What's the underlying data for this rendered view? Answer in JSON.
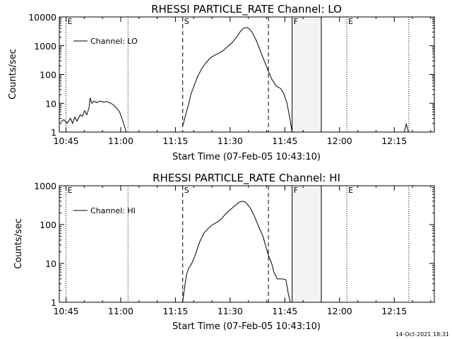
{
  "chart_data": [
    {
      "type": "line",
      "title": "RHESSI PARTICLE_RATE Channel: LO",
      "xlabel": "Start Time (07-Feb-05 10:43:10)",
      "ylabel": "Counts/sec",
      "yscale": "log",
      "ylim": [
        1,
        10000
      ],
      "xlim": [
        10.7194,
        12.4333
      ],
      "xtick_labels": [
        "10:45",
        "11:00",
        "11:15",
        "11:30",
        "11:45",
        "12:00",
        "12:15"
      ],
      "ytick_labels": [
        "1",
        "10",
        "100",
        "1000",
        "10000"
      ],
      "legend": "Channel: LO",
      "markers": [
        {
          "label": "E",
          "t": 10.75,
          "style": "dotted"
        },
        {
          "label": "",
          "t": 11.0333,
          "style": "dotted"
        },
        {
          "label": "S",
          "t": 11.2833,
          "style": "dashed"
        },
        {
          "label": "",
          "t": 11.675,
          "style": "dashed"
        },
        {
          "label": "F",
          "t": 11.7833,
          "style": "solid"
        },
        {
          "label": "",
          "t": 11.9167,
          "style": "solid"
        },
        {
          "label": "E",
          "t": 12.0333,
          "style": "dotted"
        },
        {
          "label": "",
          "t": 12.3167,
          "style": "dotted"
        }
      ],
      "series": [
        {
          "name": "Channel: LO",
          "segments": [
            [
              [
                10.725,
                2.2
              ],
              [
                10.74,
                2.7
              ],
              [
                10.755,
                2.0
              ],
              [
                10.77,
                3.0
              ],
              [
                10.78,
                2.0
              ],
              [
                10.79,
                3.3
              ],
              [
                10.8,
                2.4
              ],
              [
                10.815,
                4.0
              ],
              [
                10.825,
                3.5
              ],
              [
                10.835,
                5.5
              ],
              [
                10.845,
                4.0
              ],
              [
                10.855,
                7.0
              ],
              [
                10.86,
                15.5
              ],
              [
                10.868,
                10.0
              ],
              [
                10.878,
                12.0
              ],
              [
                10.89,
                10.5
              ],
              [
                10.905,
                12.0
              ],
              [
                10.92,
                11.0
              ],
              [
                10.935,
                11.5
              ],
              [
                10.95,
                10.5
              ],
              [
                10.965,
                9.0
              ],
              [
                10.98,
                7.0
              ],
              [
                10.995,
                5.0
              ],
              [
                11.005,
                3.0
              ],
              [
                11.015,
                1.8
              ],
              [
                11.025,
                1.0
              ]
            ],
            [
              [
                11.283,
                1.6
              ],
              [
                11.29,
                2.5
              ],
              [
                11.3,
                5.0
              ],
              [
                11.31,
                9.0
              ],
              [
                11.32,
                20
              ],
              [
                11.335,
                40
              ],
              [
                11.35,
                80
              ],
              [
                11.37,
                160
              ],
              [
                11.39,
                260
              ],
              [
                11.41,
                380
              ],
              [
                11.43,
                470
              ],
              [
                11.45,
                550
              ],
              [
                11.47,
                700
              ],
              [
                11.49,
                950
              ],
              [
                11.51,
                1300
              ],
              [
                11.53,
                2000
              ],
              [
                11.545,
                3000
              ],
              [
                11.56,
                4000
              ],
              [
                11.575,
                4300
              ],
              [
                11.585,
                4000
              ],
              [
                11.6,
                3000
              ],
              [
                11.62,
                1500
              ],
              [
                11.64,
                600
              ],
              [
                11.66,
                250
              ],
              [
                11.675,
                130
              ],
              [
                11.69,
                70
              ],
              [
                11.71,
                40
              ],
              [
                11.73,
                33
              ],
              [
                11.745,
                22
              ],
              [
                11.76,
                10
              ],
              [
                11.77,
                4.0
              ],
              [
                11.78,
                1.4
              ],
              [
                11.783,
                1.0
              ]
            ],
            [
              [
                12.295,
                1.0
              ],
              [
                12.305,
                1.9
              ],
              [
                12.315,
                1.0
              ]
            ]
          ]
        }
      ]
    },
    {
      "type": "line",
      "title": "RHESSI PARTICLE_RATE Channel: HI",
      "xlabel": "Start Time (07-Feb-05 10:43:10)",
      "ylabel": "Counts/sec",
      "yscale": "log",
      "ylim": [
        1,
        1000
      ],
      "xlim": [
        10.7194,
        12.4333
      ],
      "xtick_labels": [
        "10:45",
        "11:00",
        "11:15",
        "11:30",
        "11:45",
        "12:00",
        "12:15"
      ],
      "ytick_labels": [
        "1",
        "10",
        "100",
        "1000"
      ],
      "legend": "Channel: HI",
      "markers": [
        {
          "label": "E",
          "t": 10.75,
          "style": "dotted"
        },
        {
          "label": "",
          "t": 11.0333,
          "style": "dotted"
        },
        {
          "label": "S",
          "t": 11.2833,
          "style": "dashed"
        },
        {
          "label": "",
          "t": 11.675,
          "style": "dashed"
        },
        {
          "label": "F",
          "t": 11.7833,
          "style": "solid"
        },
        {
          "label": "",
          "t": 11.9167,
          "style": "solid"
        },
        {
          "label": "E",
          "t": 12.0333,
          "style": "dotted"
        },
        {
          "label": "",
          "t": 12.3167,
          "style": "dotted"
        }
      ],
      "series": [
        {
          "name": "Channel: HI",
          "segments": [
            [
              [
                11.283,
                1.0
              ],
              [
                11.29,
                2.0
              ],
              [
                11.3,
                5.0
              ],
              [
                11.31,
                7.5
              ],
              [
                11.325,
                10
              ],
              [
                11.34,
                16
              ],
              [
                11.36,
                35
              ],
              [
                11.38,
                60
              ],
              [
                11.4,
                80
              ],
              [
                11.42,
                100
              ],
              [
                11.44,
                115
              ],
              [
                11.46,
                140
              ],
              [
                11.48,
                190
              ],
              [
                11.5,
                240
              ],
              [
                11.52,
                300
              ],
              [
                11.54,
                370
              ],
              [
                11.555,
                400
              ],
              [
                11.57,
                380
              ],
              [
                11.59,
                280
              ],
              [
                11.61,
                170
              ],
              [
                11.63,
                90
              ],
              [
                11.65,
                50
              ],
              [
                11.665,
                25
              ],
              [
                11.675,
                16
              ],
              [
                11.69,
                10
              ],
              [
                11.7,
                6.0
              ],
              [
                11.715,
                4.0
              ],
              [
                11.74,
                4.0
              ],
              [
                11.755,
                3.8
              ],
              [
                11.765,
                1.8
              ],
              [
                11.775,
                1.0
              ]
            ]
          ]
        }
      ]
    }
  ],
  "footer": {
    "timestamp": "14-Oct-2021 18:31"
  }
}
